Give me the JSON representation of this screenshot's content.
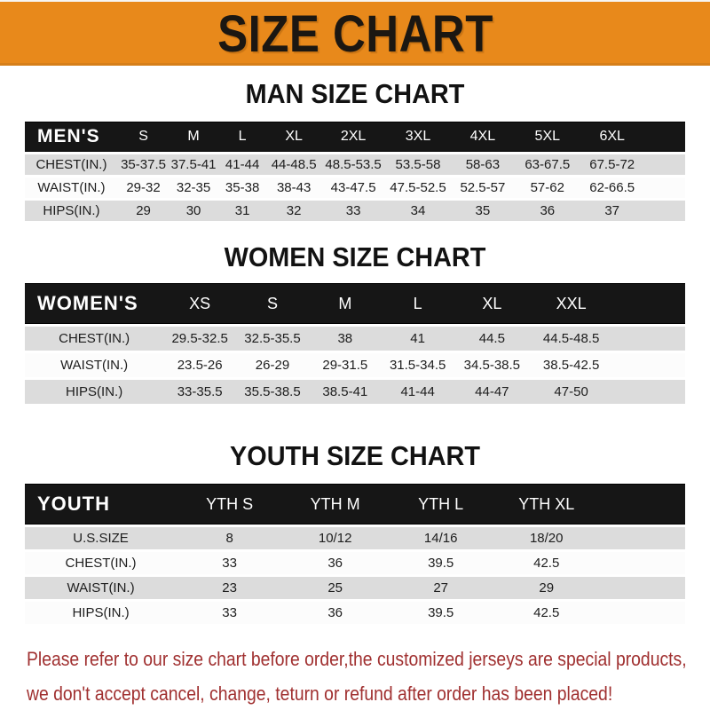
{
  "banner": {
    "title": "SIZE CHART"
  },
  "colors": {
    "banner_bg": "#E8891B",
    "table_header_bg": "#161616",
    "row_gray_bg": "#DCDCDC",
    "row_white_bg": "#FCFCFC",
    "footer_text": "#A03030",
    "bottom_bar": "#1C1C1C"
  },
  "footer": {
    "line1": "Please refer to our size chart before order,the customized jerseys are special products,",
    "line2": "we don't accept cancel, change, teturn or refund after order has been placed!"
  },
  "chart_data": [
    {
      "type": "table",
      "title": "MAN SIZE CHART",
      "header_label": "MEN'S",
      "columns": [
        "S",
        "M",
        "L",
        "XL",
        "2XL",
        "3XL",
        "4XL",
        "5XL",
        "6XL"
      ],
      "rows": [
        {
          "label": "CHEST(IN.)",
          "values": [
            "35-37.5",
            "37.5-41",
            "41-44",
            "44-48.5",
            "48.5-53.5",
            "53.5-58",
            "58-63",
            "63-67.5",
            "67.5-72"
          ]
        },
        {
          "label": "WAIST(IN.)",
          "values": [
            "29-32",
            "32-35",
            "35-38",
            "38-43",
            "43-47.5",
            "47.5-52.5",
            "52.5-57",
            "57-62",
            "62-66.5"
          ]
        },
        {
          "label": "HIPS(IN.)",
          "values": [
            "29",
            "30",
            "31",
            "32",
            "33",
            "34",
            "35",
            "36",
            "37"
          ]
        }
      ]
    },
    {
      "type": "table",
      "title": "WOMEN SIZE CHART",
      "header_label": "WOMEN'S",
      "columns": [
        "XS",
        "S",
        "M",
        "L",
        "XL",
        "XXL"
      ],
      "rows": [
        {
          "label": "CHEST(IN.)",
          "values": [
            "29.5-32.5",
            "32.5-35.5",
            "38",
            "41",
            "44.5",
            "44.5-48.5"
          ]
        },
        {
          "label": "WAIST(IN.)",
          "values": [
            "23.5-26",
            "26-29",
            "29-31.5",
            "31.5-34.5",
            "34.5-38.5",
            "38.5-42.5"
          ]
        },
        {
          "label": "HIPS(IN.)",
          "values": [
            "33-35.5",
            "35.5-38.5",
            "38.5-41",
            "41-44",
            "44-47",
            "47-50"
          ]
        }
      ]
    },
    {
      "type": "table",
      "title": "YOUTH SIZE CHART",
      "header_label": "YOUTH",
      "columns": [
        "YTH S",
        "YTH M",
        "YTH L",
        "YTH XL"
      ],
      "rows": [
        {
          "label": "U.S.SIZE",
          "values": [
            "8",
            "10/12",
            "14/16",
            "18/20"
          ]
        },
        {
          "label": "CHEST(IN.)",
          "values": [
            "33",
            "36",
            "39.5",
            "42.5"
          ]
        },
        {
          "label": "WAIST(IN.)",
          "values": [
            "23",
            "25",
            "27",
            "29"
          ]
        },
        {
          "label": "HIPS(IN.)",
          "values": [
            "33",
            "36",
            "39.5",
            "42.5"
          ]
        }
      ]
    }
  ]
}
